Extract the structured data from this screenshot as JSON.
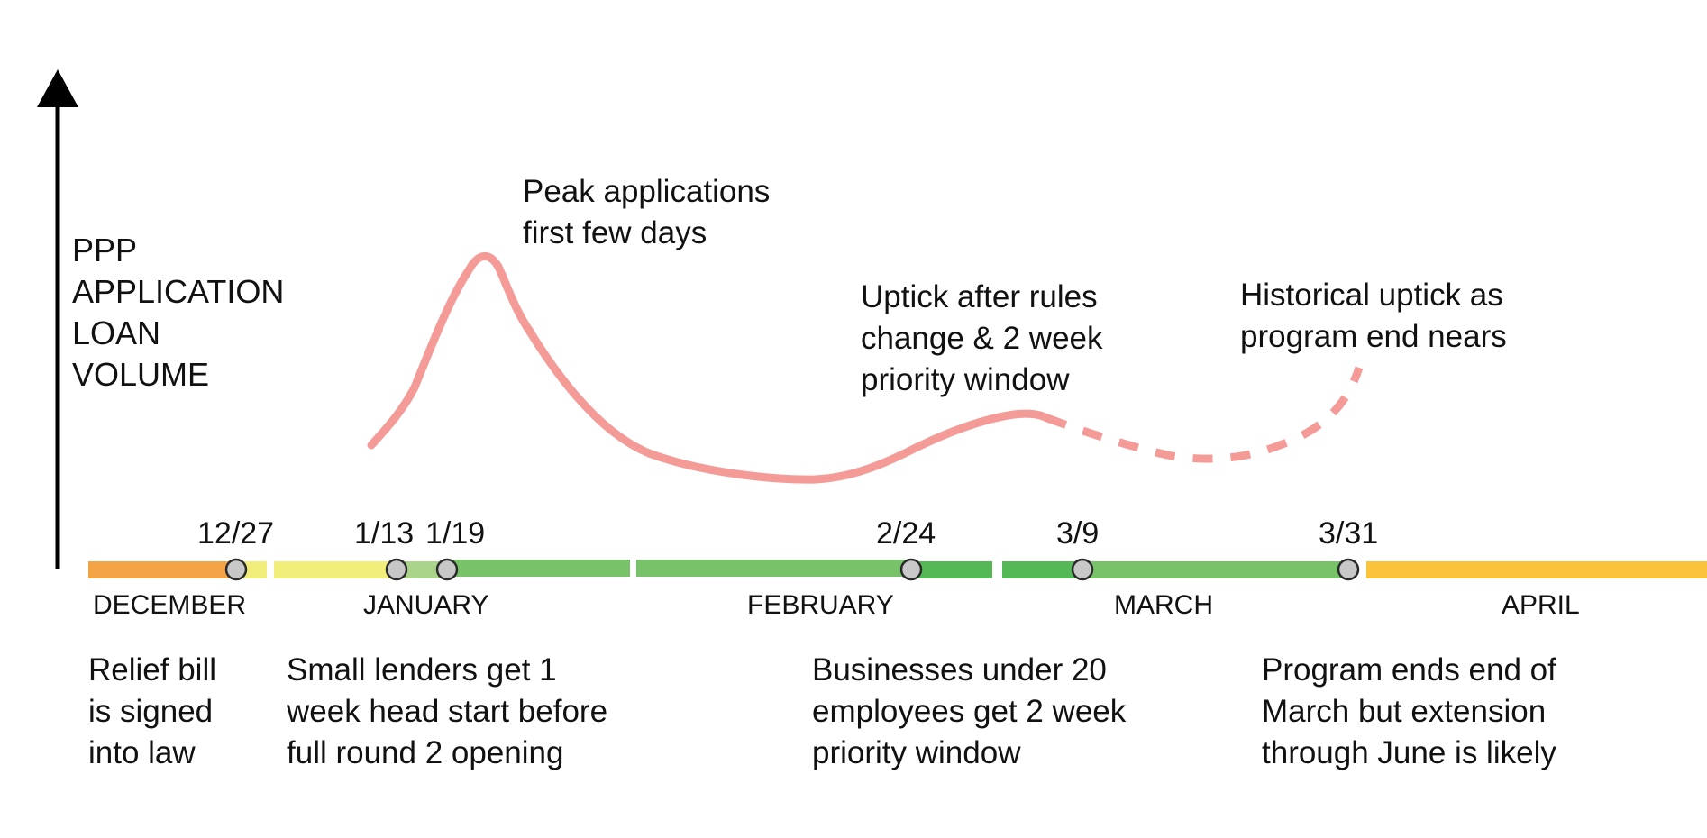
{
  "y_axis": {
    "label_lines": [
      "PPP",
      "APPLICATION",
      "LOAN",
      "VOLUME"
    ]
  },
  "annotations": {
    "peak": [
      "Peak applications",
      "first few days"
    ],
    "uptick": [
      "Uptick after rules",
      "change & 2 week",
      "priority window"
    ],
    "historical": [
      "Historical uptick as",
      "program end nears"
    ]
  },
  "months": [
    "DECEMBER",
    "JANUARY",
    "FEBRUARY",
    "MARCH",
    "APRIL"
  ],
  "milestones": [
    {
      "date": "12/27",
      "description": [
        "Relief bill",
        "is signed",
        "into law"
      ]
    },
    {
      "date": "1/13",
      "description": [
        "Small lenders get 1",
        "week head start before",
        "full round 2 opening"
      ]
    },
    {
      "date": "1/19",
      "description": []
    },
    {
      "date": "2/24",
      "description": [
        "Businesses under 20",
        "employees get 2 week",
        "priority window"
      ]
    },
    {
      "date": "3/9",
      "description": []
    },
    {
      "date": "3/31",
      "description": [
        "Program ends end of",
        "March but extension",
        "through June is likely"
      ]
    }
  ],
  "colors": {
    "axis": "#000000",
    "curve": "#f49a97",
    "marker_fill": "#c8c8c8",
    "marker_stroke": "#2a2a2a",
    "bar_orange": "#f4a347",
    "bar_yellow": "#f1ee7b",
    "bar_light_green": "#a9d48a",
    "bar_green": "#78c36a",
    "bar_dark_green": "#55b856",
    "bar_amber": "#fbc33b"
  }
}
